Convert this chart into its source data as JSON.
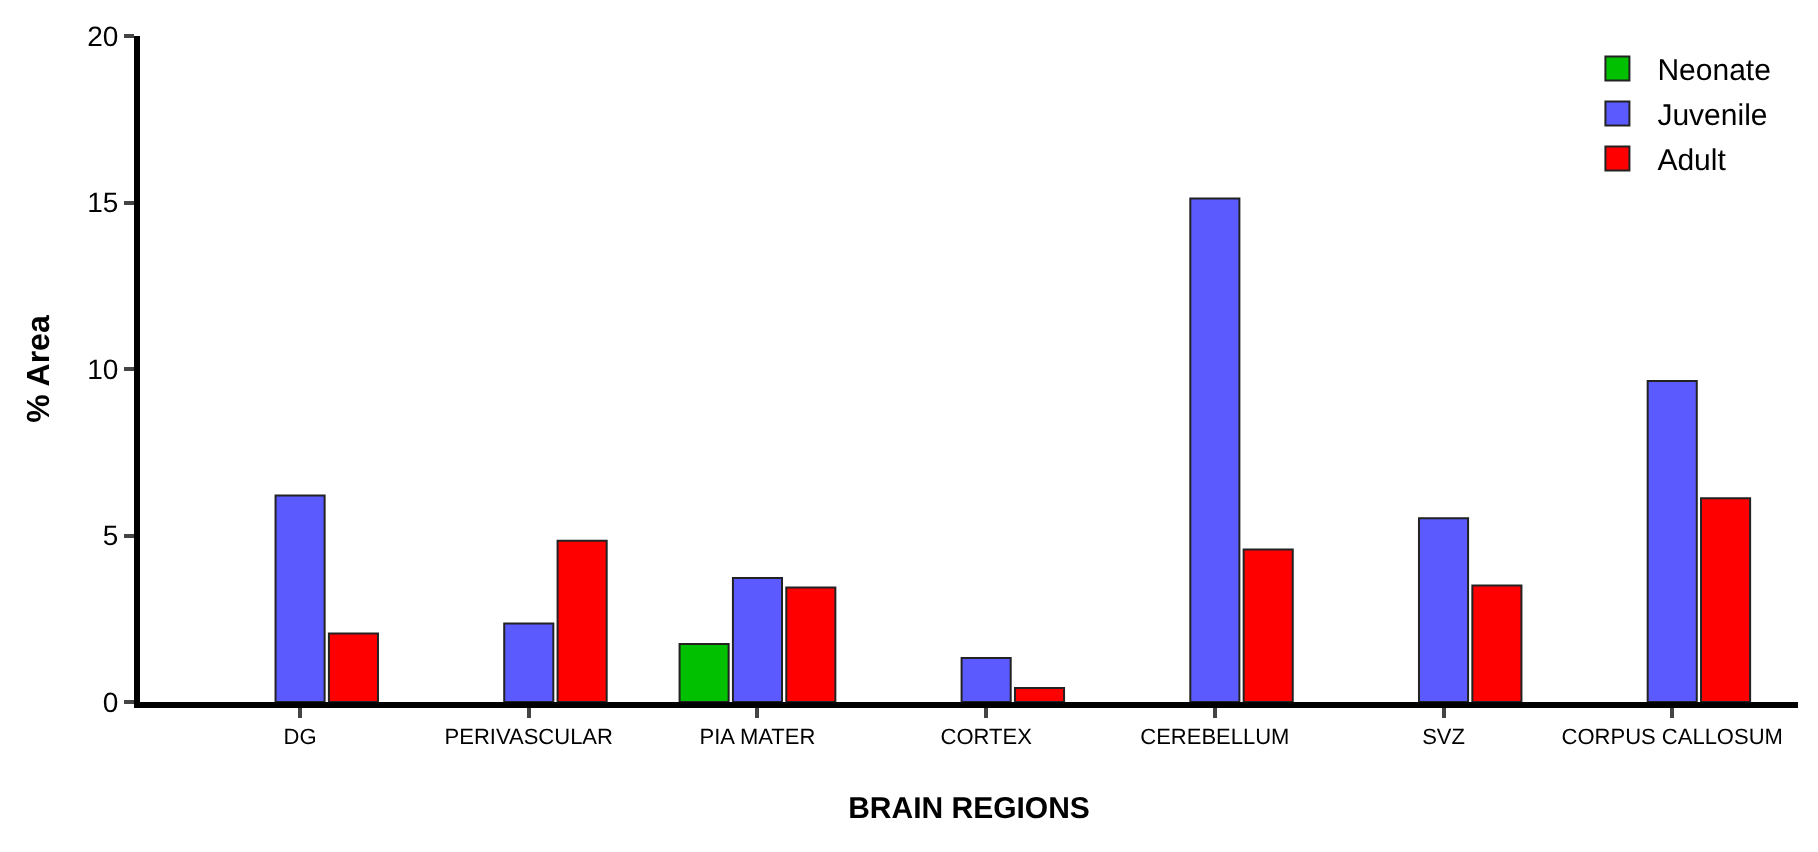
{
  "chart_data": {
    "type": "bar",
    "xlabel": "BRAIN REGIONS",
    "ylabel": "% Area",
    "categories": [
      "DG",
      "PERIVASCULAR",
      "PIA MATER",
      "CORTEX",
      "CEREBELLUM",
      "SVZ",
      "CORPUS CALLOSUM"
    ],
    "series": [
      {
        "name": "Neonate",
        "color": "#00c000",
        "values": [
          null,
          null,
          1.74,
          null,
          null,
          null,
          null
        ]
      },
      {
        "name": "Juvenile",
        "color": "#5a5aff",
        "values": [
          6.2,
          2.36,
          3.72,
          1.32,
          15.12,
          5.52,
          9.64
        ]
      },
      {
        "name": "Adult",
        "color": "#ff0000",
        "values": [
          2.06,
          4.84,
          3.44,
          0.42,
          4.58,
          3.5,
          6.12
        ]
      }
    ],
    "ylim": [
      0,
      20
    ],
    "yticks": [
      0,
      5,
      10,
      15,
      20
    ],
    "legend": "top right"
  }
}
